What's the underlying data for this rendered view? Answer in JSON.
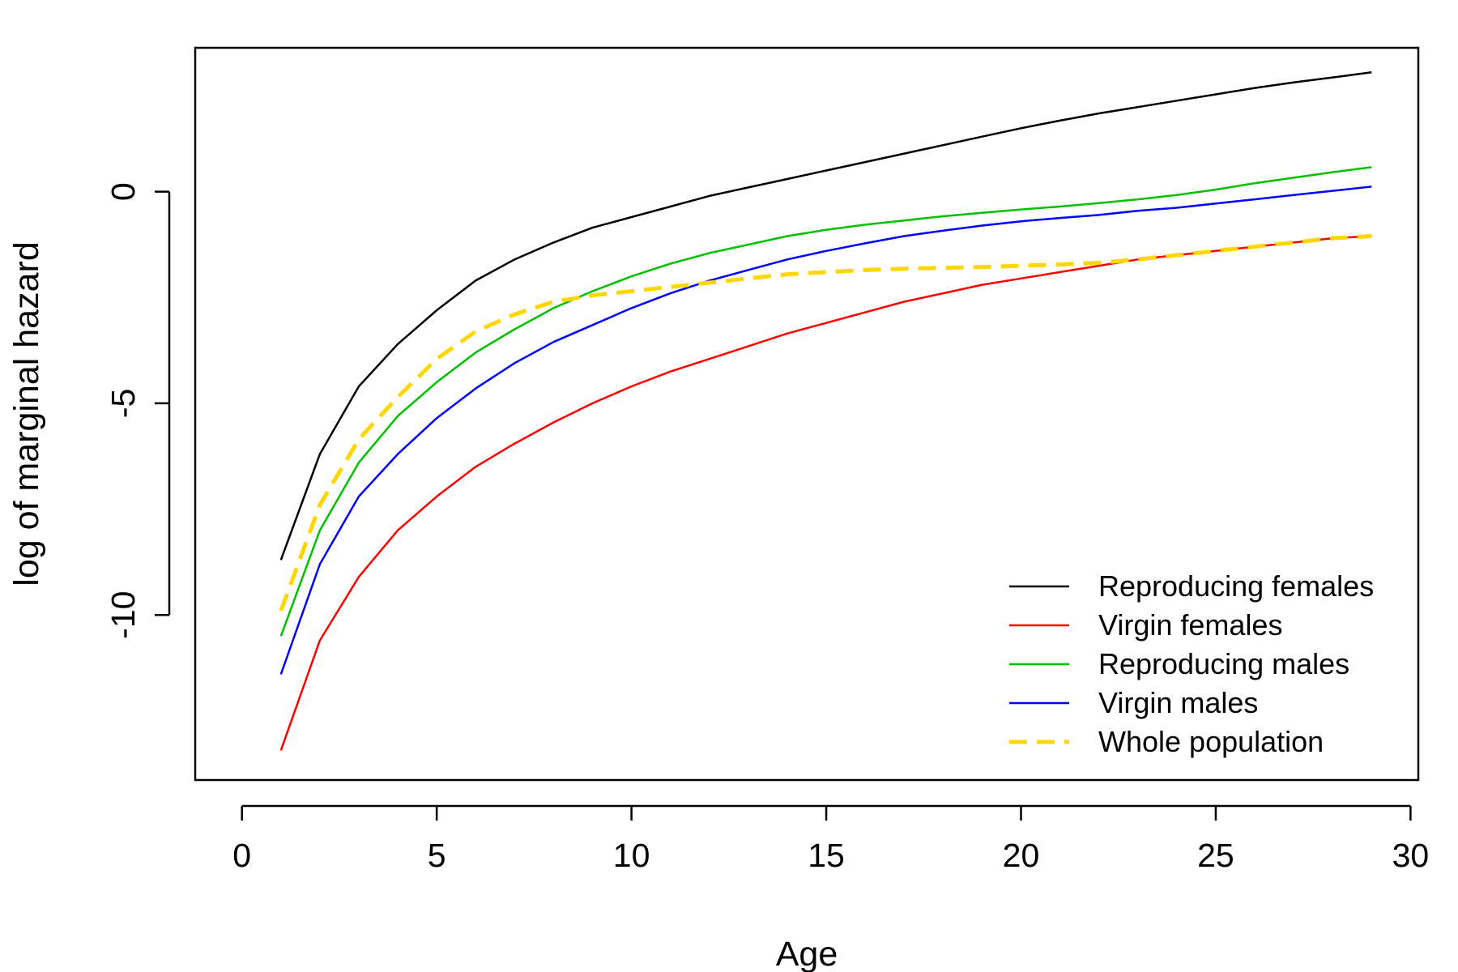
{
  "chart_data": {
    "type": "line",
    "title": "",
    "xlabel": "Age",
    "ylabel": "log of marginal hazard",
    "xlim": [
      -1.2,
      30.2
    ],
    "ylim": [
      -13.9,
      3.4
    ],
    "x_ticks": [
      0,
      5,
      10,
      15,
      20,
      25,
      30
    ],
    "y_ticks": [
      0,
      -5,
      -10
    ],
    "x_tick_labels": [
      "0",
      "5",
      "10",
      "15",
      "20",
      "25",
      "30"
    ],
    "y_tick_labels": [
      "0",
      "-5",
      "-10"
    ],
    "grid": false,
    "legend_position": "bottom-right",
    "x": [
      1,
      2,
      3,
      4,
      5,
      6,
      7,
      8,
      9,
      10,
      11,
      12,
      13,
      14,
      15,
      16,
      17,
      18,
      19,
      20,
      21,
      22,
      23,
      24,
      25,
      26,
      27,
      28,
      29
    ],
    "series": [
      {
        "name": "Reproducing females",
        "color": "#000000",
        "dash": "solid",
        "values": [
          -8.7,
          -6.2,
          -4.6,
          -3.6,
          -2.8,
          -2.1,
          -1.6,
          -1.2,
          -0.85,
          -0.6,
          -0.35,
          -0.1,
          0.1,
          0.3,
          0.5,
          0.7,
          0.9,
          1.1,
          1.3,
          1.5,
          1.68,
          1.85,
          2.0,
          2.15,
          2.3,
          2.45,
          2.58,
          2.7,
          2.82
        ]
      },
      {
        "name": "Virgin females",
        "color": "#ff0000",
        "dash": "solid",
        "values": [
          -13.2,
          -10.6,
          -9.1,
          -8.0,
          -7.2,
          -6.5,
          -5.95,
          -5.45,
          -5.0,
          -4.6,
          -4.25,
          -3.95,
          -3.65,
          -3.35,
          -3.1,
          -2.85,
          -2.6,
          -2.4,
          -2.2,
          -2.05,
          -1.9,
          -1.75,
          -1.6,
          -1.5,
          -1.4,
          -1.3,
          -1.2,
          -1.1,
          -1.05
        ]
      },
      {
        "name": "Reproducing males",
        "color": "#00c000",
        "dash": "solid",
        "values": [
          -10.5,
          -8.0,
          -6.4,
          -5.3,
          -4.5,
          -3.8,
          -3.25,
          -2.75,
          -2.35,
          -2.0,
          -1.7,
          -1.45,
          -1.25,
          -1.05,
          -0.9,
          -0.78,
          -0.68,
          -0.58,
          -0.5,
          -0.42,
          -0.35,
          -0.27,
          -0.18,
          -0.08,
          0.05,
          0.2,
          0.33,
          0.46,
          0.58
        ]
      },
      {
        "name": "Virgin males",
        "color": "#0000ff",
        "dash": "solid",
        "values": [
          -11.4,
          -8.8,
          -7.2,
          -6.2,
          -5.35,
          -4.65,
          -4.05,
          -3.55,
          -3.15,
          -2.75,
          -2.4,
          -2.1,
          -1.85,
          -1.6,
          -1.4,
          -1.22,
          -1.05,
          -0.92,
          -0.8,
          -0.7,
          -0.62,
          -0.55,
          -0.45,
          -0.38,
          -0.28,
          -0.18,
          -0.08,
          0.02,
          0.12
        ]
      },
      {
        "name": "Whole population",
        "color": "#ffd700",
        "dash": "dashed",
        "values": [
          -9.9,
          -7.4,
          -5.85,
          -4.85,
          -3.95,
          -3.3,
          -2.9,
          -2.6,
          -2.45,
          -2.35,
          -2.25,
          -2.15,
          -2.05,
          -1.95,
          -1.9,
          -1.85,
          -1.82,
          -1.8,
          -1.78,
          -1.75,
          -1.72,
          -1.68,
          -1.6,
          -1.5,
          -1.4,
          -1.3,
          -1.2,
          -1.1,
          -1.05
        ]
      }
    ]
  }
}
